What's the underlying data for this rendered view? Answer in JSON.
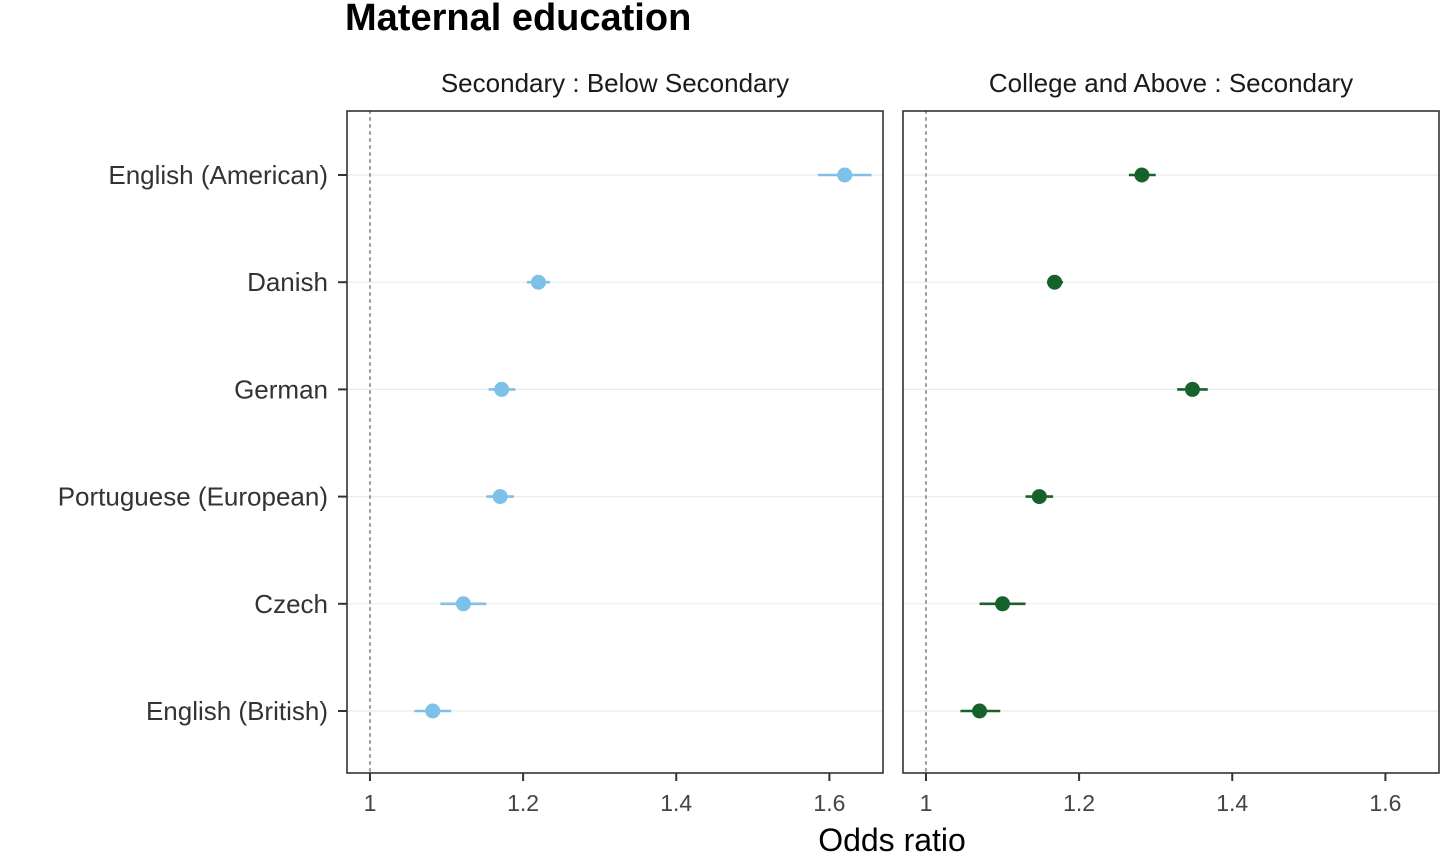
{
  "chart_data": {
    "type": "scatter",
    "title": "Maternal education",
    "xlabel": "Odds ratio",
    "ylabel": "",
    "xlim": [
      0.97,
      1.67
    ],
    "xticks": [
      1,
      1.2,
      1.4,
      1.6
    ],
    "xtick_labels": [
      "1",
      "1.2",
      "1.4",
      "1.6"
    ],
    "reference_line": 1,
    "grid": "horizontal",
    "categories": [
      "English (American)",
      "Danish",
      "German",
      "Portuguese (European)",
      "Czech",
      "English (British)"
    ],
    "panels": [
      {
        "name": "Secondary : Below Secondary",
        "color": "#7dc0e8",
        "points": [
          {
            "category": "English (American)",
            "estimate": 1.62,
            "lower": 1.585,
            "upper": 1.655
          },
          {
            "category": "Danish",
            "estimate": 1.22,
            "lower": 1.205,
            "upper": 1.235
          },
          {
            "category": "German",
            "estimate": 1.172,
            "lower": 1.155,
            "upper": 1.19
          },
          {
            "category": "Portuguese (European)",
            "estimate": 1.17,
            "lower": 1.152,
            "upper": 1.188
          },
          {
            "category": "Czech",
            "estimate": 1.122,
            "lower": 1.092,
            "upper": 1.152
          },
          {
            "category": "English (British)",
            "estimate": 1.082,
            "lower": 1.058,
            "upper": 1.106
          }
        ]
      },
      {
        "name": "College and Above : Secondary",
        "color": "#17622a",
        "points": [
          {
            "category": "English (American)",
            "estimate": 1.282,
            "lower": 1.265,
            "upper": 1.3
          },
          {
            "category": "Danish",
            "estimate": 1.168,
            "lower": 1.158,
            "upper": 1.179
          },
          {
            "category": "German",
            "estimate": 1.348,
            "lower": 1.328,
            "upper": 1.368
          },
          {
            "category": "Portuguese (European)",
            "estimate": 1.148,
            "lower": 1.13,
            "upper": 1.166
          },
          {
            "category": "Czech",
            "estimate": 1.1,
            "lower": 1.07,
            "upper": 1.13
          },
          {
            "category": "English (British)",
            "estimate": 1.07,
            "lower": 1.045,
            "upper": 1.097
          }
        ]
      }
    ]
  }
}
